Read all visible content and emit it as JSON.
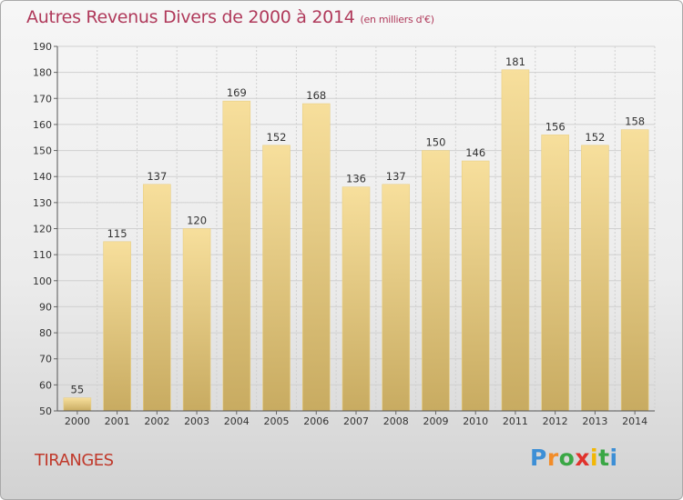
{
  "title": "Autres Revenus Divers de 2000 à 2014",
  "subtitle": "(en milliers d'€)",
  "commune": "TIRANGES",
  "logo": {
    "letters": [
      "P",
      "r",
      "o",
      "x",
      "i",
      "t",
      "i"
    ],
    "colors": [
      "#3d8fd6",
      "#f28c28",
      "#3aa745",
      "#e0322c",
      "#f2b705",
      "#3aa745",
      "#3d8fd6"
    ]
  },
  "colors": {
    "bar_top": "#f7df9c",
    "bar_bottom": "#c8ab61",
    "grid": "#d0d0d0",
    "title": "#b03a5b",
    "commune": "#c0392b"
  },
  "chart_data": {
    "type": "bar",
    "title": "Autres Revenus Divers de 2000 à 2014",
    "subtitle": "(en milliers d'€)",
    "xlabel": "",
    "ylabel": "",
    "categories": [
      "2000",
      "2001",
      "2002",
      "2003",
      "2004",
      "2005",
      "2006",
      "2007",
      "2008",
      "2009",
      "2010",
      "2011",
      "2012",
      "2013",
      "2014"
    ],
    "values": [
      55,
      115,
      137,
      120,
      169,
      152,
      168,
      136,
      137,
      150,
      146,
      181,
      156,
      152,
      158
    ],
    "ylim": [
      50,
      190
    ],
    "yticks": [
      50,
      60,
      70,
      80,
      90,
      100,
      110,
      120,
      130,
      140,
      150,
      160,
      170,
      180,
      190
    ],
    "grid": true,
    "data_labels": true
  }
}
